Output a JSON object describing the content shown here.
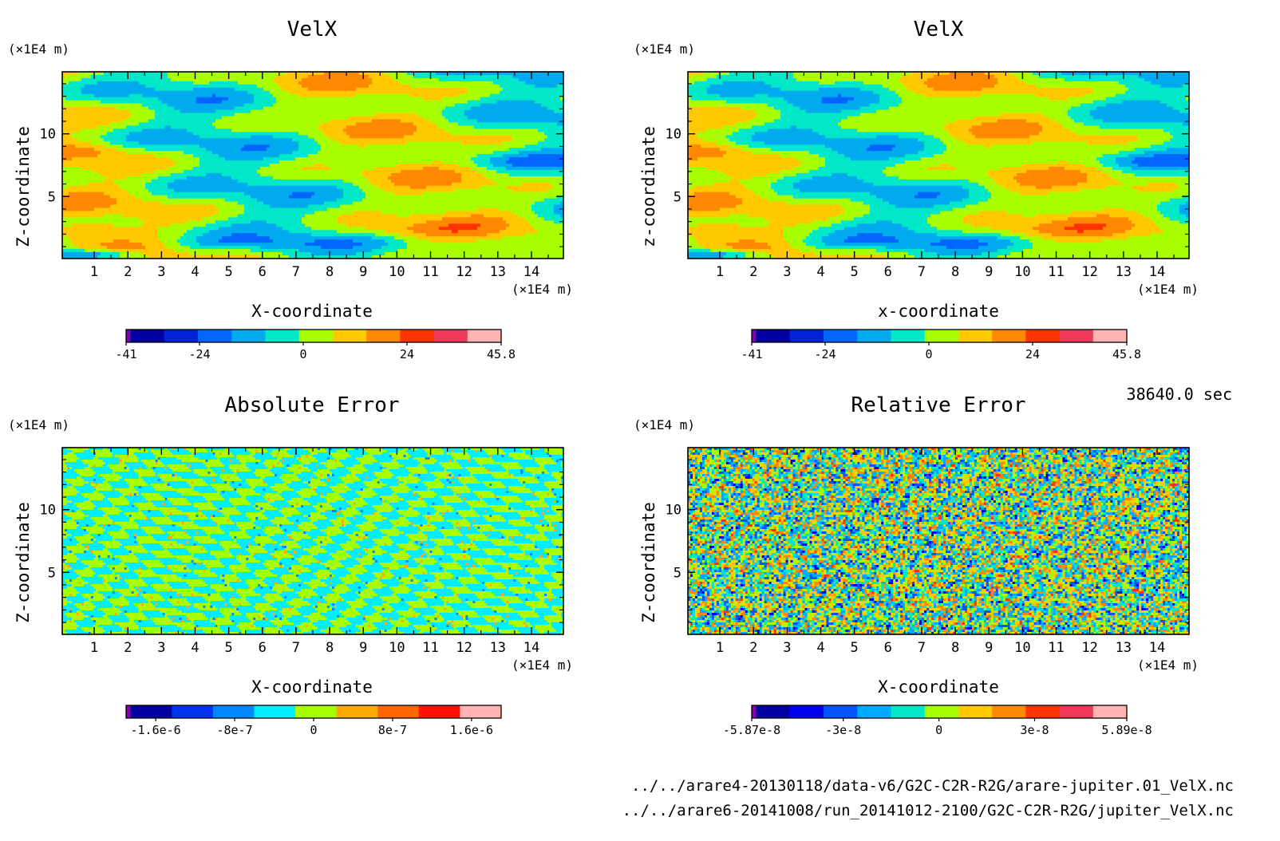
{
  "time_label": "38640.0 sec",
  "file_paths": [
    "../../arare4-20130118/data-v6/G2C-C2R-R2G/arare-jupiter.01_VelX.nc",
    "../../arare6-20141008/run_20141012-2100/G2C-C2R-R2G/jupiter_VelX.nc"
  ],
  "chart_data": [
    {
      "type": "heatmap",
      "title": "VelX",
      "xlabel": "X-coordinate",
      "ylabel": "Z-coordinate",
      "x_unit": "(×1E4 m)",
      "y_unit": "(×1E4 m)",
      "x_ticks": [
        1,
        2,
        3,
        4,
        5,
        6,
        7,
        8,
        9,
        10,
        11,
        12,
        13,
        14
      ],
      "y_ticks": [
        5,
        10
      ],
      "xlim": [
        0.05,
        14.95
      ],
      "ylim": [
        0.05,
        14.95
      ],
      "pattern": "smooth",
      "colorbar": {
        "min": -41,
        "max": 45.8,
        "tick_values": [
          -41,
          -24,
          0,
          24,
          45.8
        ],
        "tick_labels": [
          "-41",
          "-24",
          "0",
          "24",
          "45.8"
        ],
        "colors": [
          "#7b00b0",
          "#0000a0",
          "#0022d8",
          "#0066ff",
          "#00aaee",
          "#00e8c8",
          "#a8ff00",
          "#ffc800",
          "#ff8800",
          "#ff3300",
          "#f03858",
          "#ffb4b4"
        ]
      }
    },
    {
      "type": "heatmap",
      "title": "VelX",
      "xlabel": "x-coordinate",
      "ylabel": "z-coordinate",
      "x_unit": "(×1E4 m)",
      "y_unit": "(×1E4 m)",
      "x_ticks": [
        1,
        2,
        3,
        4,
        5,
        6,
        7,
        8,
        9,
        10,
        11,
        12,
        13,
        14
      ],
      "y_ticks": [
        5,
        10
      ],
      "xlim": [
        0.05,
        14.95
      ],
      "ylim": [
        0.05,
        14.95
      ],
      "pattern": "smooth",
      "colorbar": {
        "min": -41,
        "max": 45.8,
        "tick_values": [
          -41,
          -24,
          0,
          24,
          45.8
        ],
        "tick_labels": [
          "-41",
          "-24",
          "0",
          "24",
          "45.8"
        ],
        "colors": [
          "#7b00b0",
          "#0000a0",
          "#0022d8",
          "#0066ff",
          "#00aaee",
          "#00e8c8",
          "#a8ff00",
          "#ffc800",
          "#ff8800",
          "#ff3300",
          "#f03858",
          "#ffb4b4"
        ]
      }
    },
    {
      "type": "heatmap",
      "title": "Absolute Error",
      "xlabel": "X-coordinate",
      "ylabel": "Z-coordinate",
      "x_unit": "(×1E4 m)",
      "y_unit": "(×1E4 m)",
      "x_ticks": [
        1,
        2,
        3,
        4,
        5,
        6,
        7,
        8,
        9,
        10,
        11,
        12,
        13,
        14
      ],
      "y_ticks": [
        5,
        10
      ],
      "xlim": [
        0.05,
        14.95
      ],
      "ylim": [
        0.05,
        14.95
      ],
      "pattern": "noise-abs",
      "colorbar": {
        "min": -1.9e-06,
        "max": 1.9e-06,
        "tick_values": [
          -1.6e-06,
          -8e-07,
          0,
          8e-07,
          1.6e-06
        ],
        "tick_labels": [
          "-1.6e-6",
          "-8e-7",
          "0",
          "8e-7",
          "1.6e-6"
        ],
        "colors": [
          "#8800aa",
          "#0000a0",
          "#0033ee",
          "#0088ff",
          "#00eeff",
          "#a8ff00",
          "#ffaa00",
          "#ff6600",
          "#ff1100",
          "#ffb4b4"
        ]
      }
    },
    {
      "type": "heatmap",
      "title": "Relative Error",
      "xlabel": "X-coordinate",
      "ylabel": "Z-coordinate",
      "x_unit": "(×1E4 m)",
      "y_unit": "(×1E4 m)",
      "x_ticks": [
        1,
        2,
        3,
        4,
        5,
        6,
        7,
        8,
        9,
        10,
        11,
        12,
        13,
        14
      ],
      "y_ticks": [
        5,
        10
      ],
      "xlim": [
        0.05,
        14.95
      ],
      "ylim": [
        0.05,
        14.95
      ],
      "pattern": "noise-rel",
      "colorbar": {
        "min": -5.87e-08,
        "max": 5.89e-08,
        "tick_values": [
          -5.87e-08,
          -3e-08,
          0,
          3e-08,
          5.89e-08
        ],
        "tick_labels": [
          "-5.87e-8",
          "-3e-8",
          "0",
          "3e-8",
          "5.89e-8"
        ],
        "colors": [
          "#8800aa",
          "#0000a0",
          "#0000ee",
          "#0055ff",
          "#00aaff",
          "#00e8c8",
          "#a8ff00",
          "#ffc800",
          "#ff8800",
          "#ff3300",
          "#f03858",
          "#ffb4b4"
        ]
      }
    }
  ]
}
